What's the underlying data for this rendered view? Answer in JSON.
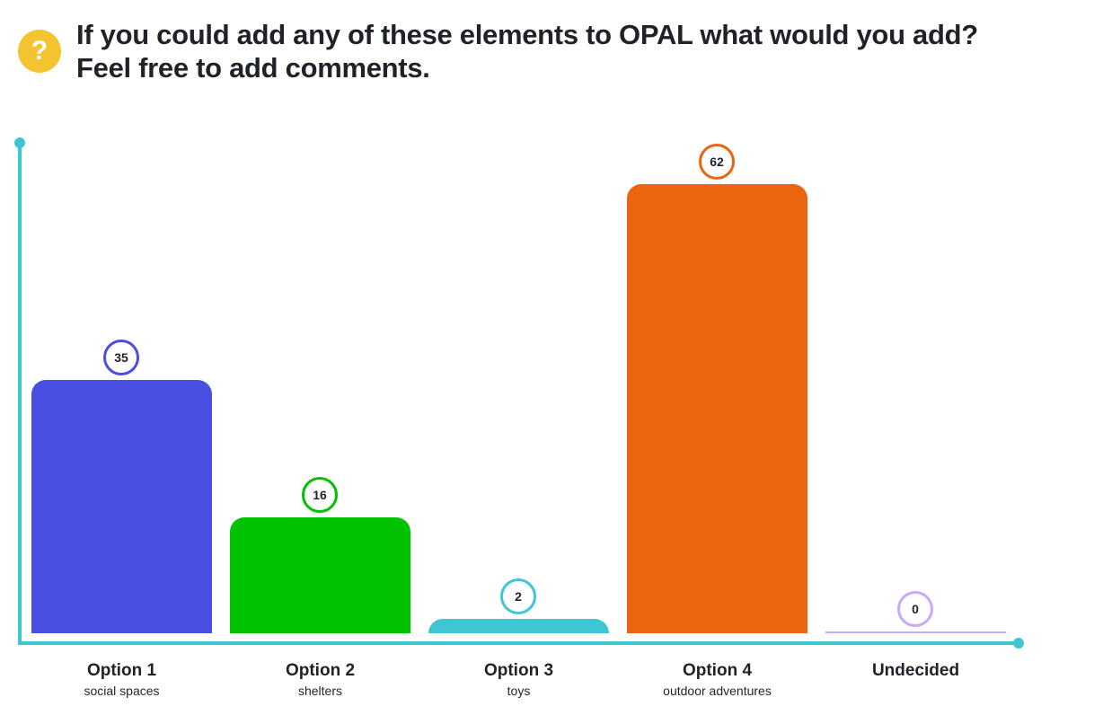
{
  "question": {
    "icon": "question-icon",
    "icon_glyph": "?",
    "title": "If you could add any of these elements to OPAL what would you add? Feel free to add comments."
  },
  "chart_data": {
    "type": "bar",
    "title": "If you could add any of these elements to OPAL what would you add? Feel free to add comments.",
    "categories": [
      "Option 1",
      "Option 2",
      "Option 3",
      "Option 4",
      "Undecided"
    ],
    "subtitles": [
      "social spaces",
      "shelters",
      "toys",
      "outdoor adventures",
      ""
    ],
    "values": [
      35,
      16,
      2,
      62,
      0
    ],
    "colors": [
      "#4a4fe4",
      "#00c200",
      "#3ec6d3",
      "#eb6410",
      "#c9a8ff"
    ],
    "ylim": [
      0,
      62
    ],
    "xlabel": "",
    "ylabel": "",
    "grid": false
  }
}
